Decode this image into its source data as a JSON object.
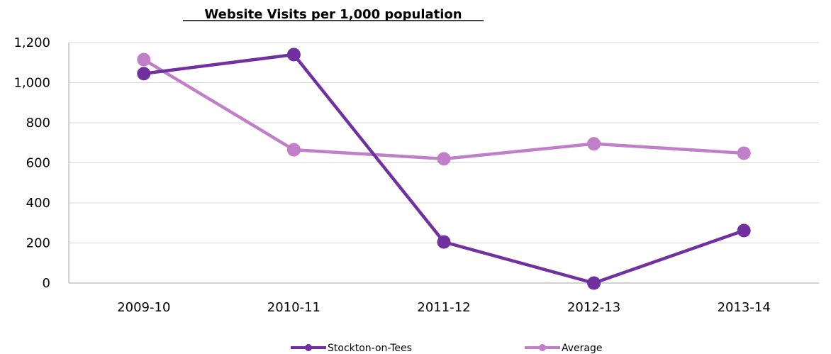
{
  "chart_data": {
    "type": "line",
    "title": "Website Visits per 1,000 population",
    "xlabel": "",
    "ylabel": "",
    "categories": [
      "2009-10",
      "2010-11",
      "2011-12",
      "2012-13",
      "2013-14"
    ],
    "ylim": [
      0,
      1200
    ],
    "yticks": [
      0,
      200,
      400,
      600,
      800,
      1000,
      1200
    ],
    "ytick_labels": [
      "0",
      "200",
      "400",
      "600",
      "800",
      "1,000",
      "1,200"
    ],
    "grid": true,
    "legend_position": "bottom",
    "series": [
      {
        "name": "Stockton-on-Tees",
        "values": [
          1045,
          1140,
          205,
          0,
          262
        ],
        "color": "#7030a0"
      },
      {
        "name": "Average",
        "values": [
          1115,
          665,
          620,
          695,
          648
        ],
        "color": "#c07fc8"
      }
    ]
  }
}
